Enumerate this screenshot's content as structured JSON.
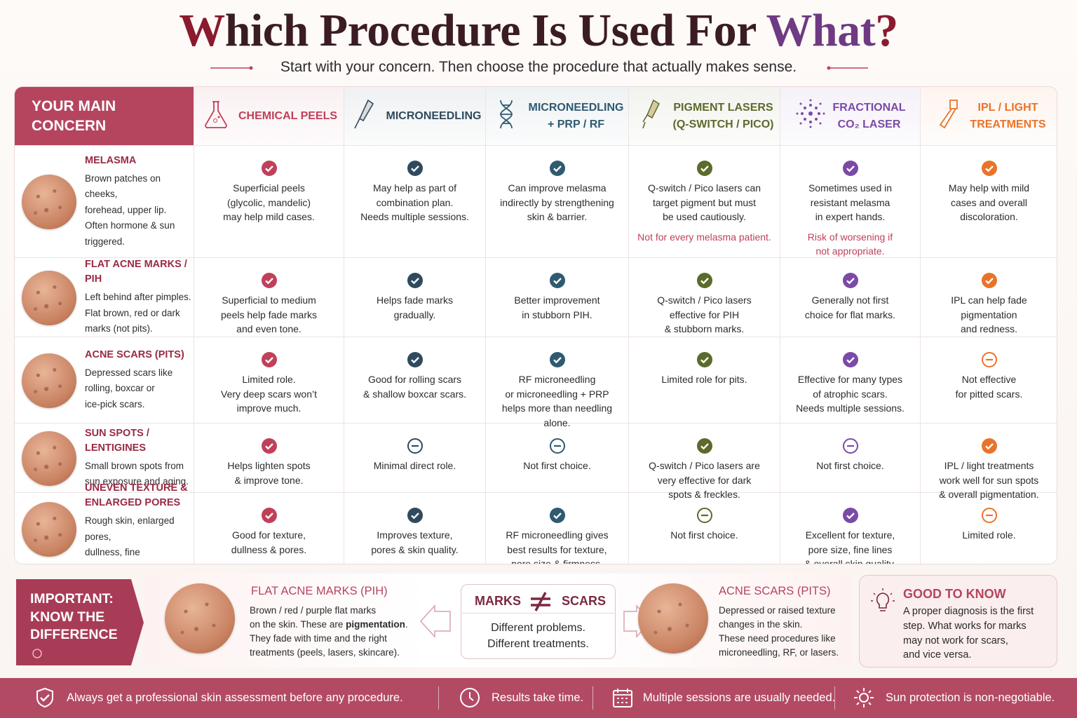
{
  "header": {
    "title": [
      "W",
      "hich Procedure Is Used For ",
      "What",
      "?"
    ],
    "subtitle": "Start with your concern. Then choose the procedure that actually makes sense."
  },
  "table": {
    "corner": "YOUR MAIN\nCONCERN",
    "columns": [
      {
        "name": "CHEMICAL PEELS",
        "color": "#c0405a"
      },
      {
        "name": "MICRONEEDLING",
        "color": "#2f4a5e"
      },
      {
        "name": "MICRONEEDLING\n+ PRP / RF",
        "color": "#2f5a70"
      },
      {
        "name": "PIGMENT LASERS\n(Q-SWITCH / PICO)",
        "color": "#5c6a2c"
      },
      {
        "name": "FRACTIONAL\nCO₂ LASER",
        "color": "#7a4aa8"
      },
      {
        "name": "IPL / LIGHT\nTREATMENTS",
        "color": "#e8742a"
      }
    ],
    "rows": [
      {
        "concern": "MELASMA",
        "description": "Brown patches on cheeks,\nforehead, upper lip.\nOften hormone & sun\ntriggered.",
        "cells": [
          {
            "icon": "check",
            "text": "Superficial peels\n(glycolic, mandelic)\nmay help mild cases."
          },
          {
            "icon": "check",
            "text": "May help as part of\ncombination plan.\nNeeds multiple sessions."
          },
          {
            "icon": "check",
            "text": "Can improve melasma\nindirectly by strengthening\nskin & barrier."
          },
          {
            "icon": "check",
            "text": "Q-switch / Pico lasers can\ntarget pigment but must\nbe used cautiously.",
            "warning": "Not for every melasma patient."
          },
          {
            "icon": "check",
            "text": "Sometimes used in\nresistant melasma\nin expert hands.",
            "warning": "Risk of worsening if\nnot appropriate."
          },
          {
            "icon": "check",
            "text": "May help with mild\ncases and overall\ndiscoloration."
          }
        ]
      },
      {
        "concern": "FLAT ACNE MARKS / PIH",
        "description": "Left behind after pimples.\nFlat brown, red or dark\nmarks (not pits).",
        "cells": [
          {
            "icon": "check",
            "text": "Superficial to medium\npeels help fade marks\nand even tone."
          },
          {
            "icon": "check",
            "text": "Helps fade marks\ngradually."
          },
          {
            "icon": "check",
            "text": "Better improvement\nin stubborn PIH."
          },
          {
            "icon": "check",
            "text": "Q-switch / Pico lasers\neffective for PIH\n& stubborn marks."
          },
          {
            "icon": "check",
            "text": "Generally not first\nchoice for flat marks."
          },
          {
            "icon": "check",
            "text": "IPL can help fade\npigmentation\nand redness."
          }
        ]
      },
      {
        "concern": "ACNE SCARS (PITS)",
        "description": "Depressed scars like\nrolling, boxcar or\nice-pick scars.",
        "cells": [
          {
            "icon": "check",
            "text": "Limited role.\nVery deep scars won’t\nimprove much."
          },
          {
            "icon": "check",
            "text": "Good for rolling scars\n& shallow boxcar scars."
          },
          {
            "icon": "check",
            "text": "RF microneedling\nor microneedling + PRP\nhelps more than needling\nalone."
          },
          {
            "icon": "check",
            "text": "Limited role for pits."
          },
          {
            "icon": "check",
            "text": "Effective for many types\nof atrophic scars.\nNeeds multiple sessions."
          },
          {
            "icon": "minus",
            "text": "Not effective\nfor pitted scars."
          }
        ]
      },
      {
        "concern": "SUN SPOTS / LENTIGINES",
        "description": "Small brown spots from\nsun exposure and aging.",
        "cells": [
          {
            "icon": "check",
            "text": "Helps lighten spots\n& improve tone."
          },
          {
            "icon": "minus",
            "text": "Minimal direct role."
          },
          {
            "icon": "minus",
            "text": "Not first choice."
          },
          {
            "icon": "check",
            "text": "Q-switch / Pico lasers are\nvery effective for dark\nspots & freckles."
          },
          {
            "icon": "minus",
            "text": "Not first choice."
          },
          {
            "icon": "check",
            "text": "IPL / light treatments\nwork well for sun spots\n& overall pigmentation."
          }
        ]
      },
      {
        "concern": "UNEVEN TEXTURE &\nENLARGED PORES",
        "description": "Rough skin, enlarged pores,\ndullness, fine irregularities.",
        "cells": [
          {
            "icon": "check",
            "text": "Good for texture,\ndullness & pores."
          },
          {
            "icon": "check",
            "text": "Improves texture,\npores & skin quality."
          },
          {
            "icon": "check",
            "text": "RF microneedling gives\nbest results for texture,\npore size & firmness."
          },
          {
            "icon": "minus",
            "text": "Not first choice."
          },
          {
            "icon": "check",
            "text": "Excellent for texture,\npore size, fine lines\n& overall skin quality."
          },
          {
            "icon": "minus",
            "text": "Limited role."
          }
        ]
      }
    ]
  },
  "difference": {
    "label": "IMPORTANT:\nKNOW THE\nDIFFERENCE",
    "marks": {
      "title": "FLAT ACNE MARKS (PIH)",
      "text": [
        "Brown / red / purple flat marks\non the skin. These are ",
        "pigmentation",
        ".\nThey fade with time and the right\ntreatments (peels, lasers, skincare)."
      ]
    },
    "compare": {
      "left": "MARKS",
      "right": "SCARS",
      "text": "Different problems.\nDifferent treatments."
    },
    "scars": {
      "title": "ACNE SCARS (PITS)",
      "text": "Depressed or raised texture\nchanges in the skin.\nThese need procedures like\nmicroneedling, RF, or lasers."
    }
  },
  "good_to_know": {
    "title": "GOOD TO KNOW",
    "text": "A proper diagnosis is the first\nstep. What works for marks\nmay not work for scars,\nand vice versa."
  },
  "footer": [
    "Always get a professional skin assessment before any procedure.",
    "Results take time.",
    "Multiple sessions are usually needed.",
    "Sun protection is non-negotiable."
  ]
}
